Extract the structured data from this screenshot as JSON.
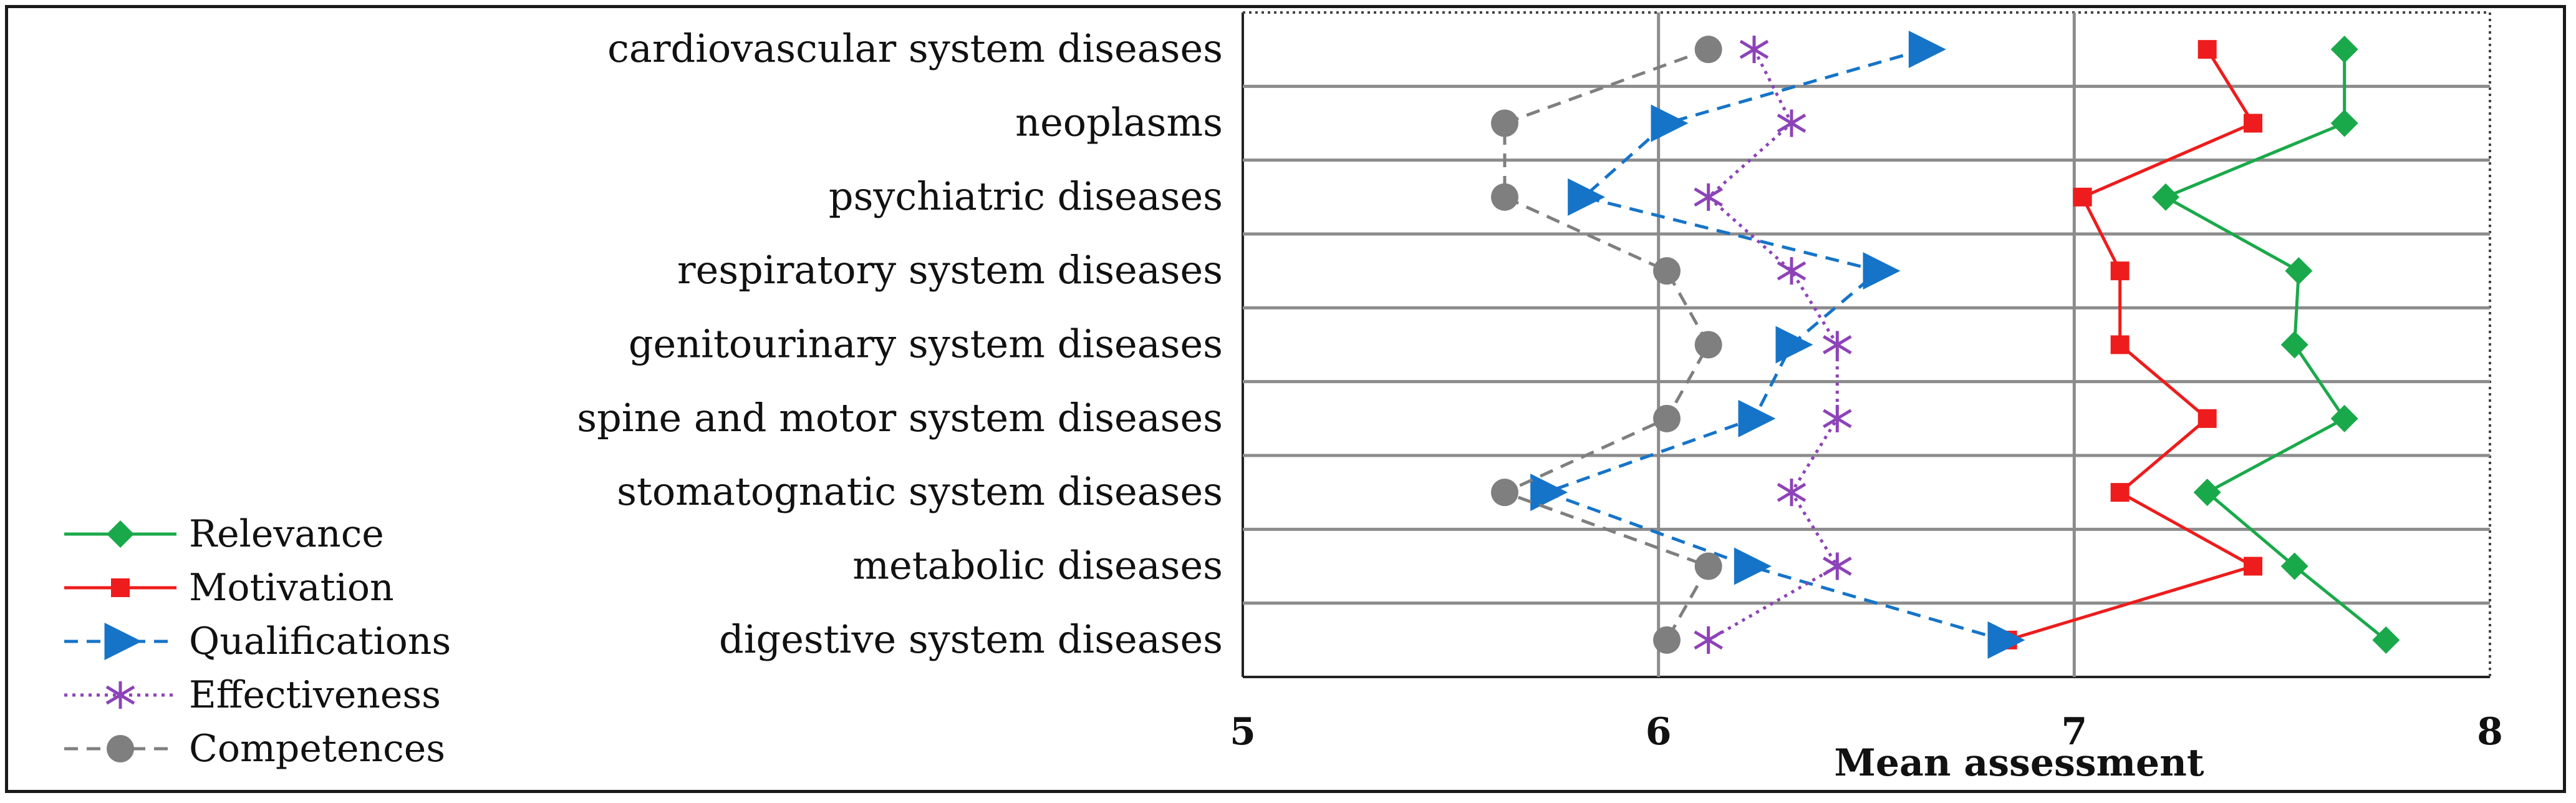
{
  "chart_data": {
    "type": "line",
    "orientation": "horizontal-categories",
    "title": "",
    "xlabel": "Mean assessment",
    "ylabel": "",
    "xlim": [
      5,
      8
    ],
    "xticks": [
      "5",
      "6",
      "7",
      "8"
    ],
    "grid": true,
    "legend_position": "bottom-left",
    "categories": [
      "cardiovascular system diseases",
      "neoplasms",
      "psychiatric diseases",
      "respiratory system diseases",
      "genitourinary system diseases",
      "spine and motor system diseases",
      "stomatognatic system diseases",
      "metabolic diseases",
      "digestive system diseases"
    ],
    "series": [
      {
        "name": "Relevance",
        "color": "#1aa94a",
        "dash": "solid",
        "marker": "diamond",
        "values": [
          7.65,
          7.65,
          7.22,
          7.54,
          7.53,
          7.65,
          7.32,
          7.53,
          7.75
        ]
      },
      {
        "name": "Motivation",
        "color": "#ee1c1c",
        "dash": "solid",
        "marker": "square",
        "values": [
          7.32,
          7.43,
          7.02,
          7.11,
          7.11,
          7.32,
          7.11,
          7.43,
          6.84
        ]
      },
      {
        "name": "Qualifications",
        "color": "#1674c8",
        "dash": "dashed",
        "marker": "triangle",
        "values": [
          6.64,
          6.02,
          5.82,
          6.53,
          6.32,
          6.23,
          5.73,
          6.22,
          6.83
        ]
      },
      {
        "name": "Effectiveness",
        "color": "#8d43b8",
        "dash": "dotted",
        "marker": "star",
        "values": [
          6.23,
          6.32,
          6.12,
          6.32,
          6.43,
          6.43,
          6.32,
          6.43,
          6.12
        ]
      },
      {
        "name": "Competences",
        "color": "#7f7f7f",
        "dash": "dashed",
        "marker": "circle",
        "values": [
          6.12,
          5.63,
          5.63,
          6.02,
          6.12,
          6.02,
          5.63,
          6.12,
          6.02
        ]
      }
    ]
  }
}
